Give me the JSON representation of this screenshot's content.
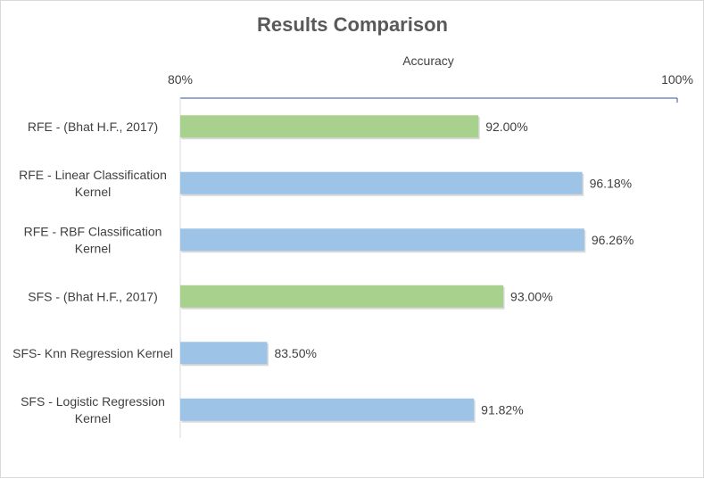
{
  "chart_data": {
    "type": "bar",
    "orientation": "horizontal",
    "title": "Results Comparison",
    "xlabel": "Accuracy",
    "xlim": [
      80,
      100
    ],
    "x_tick_labels": [
      "80%",
      "100%"
    ],
    "x_axis_position": "top",
    "grid": false,
    "legend": "none",
    "categories": [
      "RFE - (Bhat H.F., 2017)",
      "RFE - Linear Classification Kernel",
      "RFE - RBF Classification Kernel",
      "SFS - (Bhat H.F., 2017)",
      "SFS- Knn Regression Kernel",
      "SFS - Logistic Regression Kernel"
    ],
    "category_label_lines": [
      [
        "RFE - (Bhat H.F., 2017)"
      ],
      [
        "RFE - Linear Classification",
        "Kernel"
      ],
      [
        "RFE - RBF Classification",
        "Kernel"
      ],
      [
        "SFS - (Bhat H.F., 2017)"
      ],
      [
        "SFS- Knn Regression Kernel"
      ],
      [
        "SFS - Logistic Regression",
        "Kernel"
      ]
    ],
    "values": [
      92.0,
      96.18,
      96.26,
      93.0,
      83.5,
      91.82
    ],
    "value_labels": [
      "92.00%",
      "96.18%",
      "96.26%",
      "93.00%",
      "83.50%",
      "91.82%"
    ],
    "bar_colors": [
      "#a9d18e",
      "#9dc3e6",
      "#9dc3e6",
      "#a9d18e",
      "#9dc3e6",
      "#9dc3e6"
    ],
    "axis_color": "#2f5597"
  }
}
